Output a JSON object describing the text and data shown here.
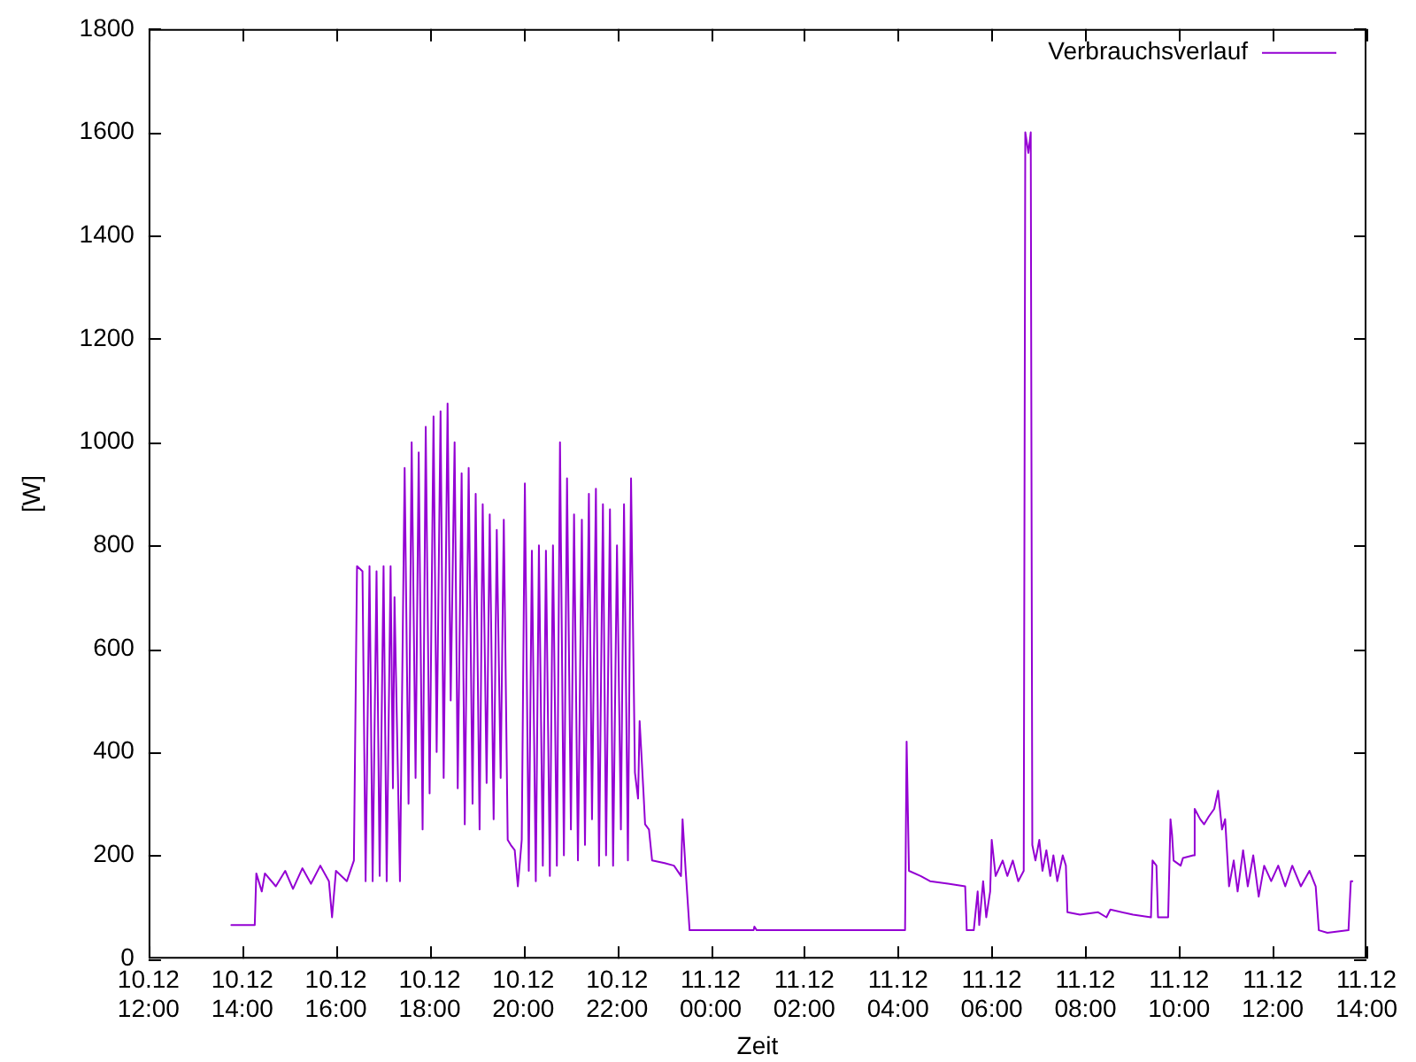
{
  "chart_data": {
    "type": "line",
    "xlabel": "Zeit",
    "ylabel": "[W]",
    "legend": "top right",
    "grid": false,
    "marker": "none",
    "line_style": "solid",
    "xlim": [
      "--12-10T12:00",
      "--12-11T14:00"
    ],
    "ylim": [
      0,
      1800
    ],
    "xticks": [
      {
        "value": "--12-10T12:00",
        "label": "10.12 12:00"
      },
      {
        "value": "--12-10T14:00",
        "label": "10.12 14:00"
      },
      {
        "value": "--12-10T16:00",
        "label": "10.12 16:00"
      },
      {
        "value": "--12-10T18:00",
        "label": "10.12 18:00"
      },
      {
        "value": "--12-10T20:00",
        "label": "10.12 20:00"
      },
      {
        "value": "--12-10T22:00",
        "label": "10.12 22:00"
      },
      {
        "value": "--12-11T00:00",
        "label": "11.12 00:00"
      },
      {
        "value": "--12-11T02:00",
        "label": "11.12 02:00"
      },
      {
        "value": "--12-11T04:00",
        "label": "11.12 04:00"
      },
      {
        "value": "--12-11T06:00",
        "label": "11.12 06:00"
      },
      {
        "value": "--12-11T08:00",
        "label": "11.12 08:00"
      },
      {
        "value": "--12-11T10:00",
        "label": "11.12 10:00"
      },
      {
        "value": "--12-11T12:00",
        "label": "11.12 12:00"
      },
      {
        "value": "--12-11T14:00",
        "label": "11.12 14:00"
      }
    ],
    "yticks": [
      0,
      200,
      400,
      600,
      800,
      1000,
      1200,
      1400,
      1600,
      1800
    ],
    "series": [
      {
        "name": "Verbrauchsverlauf",
        "color": "#9400d3",
        "x": [
          "--12-10T13:46",
          "--12-10T14:16",
          "--12-10T14:18",
          "--12-10T14:25",
          "--12-10T14:29",
          "--12-10T14:43",
          "--12-10T14:55",
          "--12-10T15:05",
          "--12-10T15:17",
          "--12-10T15:28",
          "--12-10T15:40",
          "--12-10T15:51",
          "--12-10T15:55",
          "--12-10T16:00",
          "--12-10T16:14",
          "--12-10T16:23",
          "--12-10T16:27",
          "--12-10T16:34",
          "--12-10T16:38",
          "--12-10T16:43",
          "--12-10T16:47",
          "--12-10T16:52",
          "--12-10T16:56",
          "--12-10T17:01",
          "--12-10T17:05",
          "--12-10T17:10",
          "--12-10T17:13",
          "--12-10T17:15",
          "--12-10T17:22",
          "--12-10T17:28",
          "--12-10T17:33",
          "--12-10T17:37",
          "--12-10T17:42",
          "--12-10T17:46",
          "--12-10T17:51",
          "--12-10T17:55",
          "--12-10T18:00",
          "--12-10T18:05",
          "--12-10T18:09",
          "--12-10T18:14",
          "--12-10T18:18",
          "--12-10T18:23",
          "--12-10T18:27",
          "--12-10T18:32",
          "--12-10T18:36",
          "--12-10T18:41",
          "--12-10T18:45",
          "--12-10T18:50",
          "--12-10T18:55",
          "--12-10T18:59",
          "--12-10T19:04",
          "--12-10T19:08",
          "--12-10T19:13",
          "--12-10T19:17",
          "--12-10T19:22",
          "--12-10T19:26",
          "--12-10T19:31",
          "--12-10T19:35",
          "--12-10T19:40",
          "--12-10T19:44",
          "--12-10T19:49",
          "--12-10T19:53",
          "--12-10T19:58",
          "--12-10T20:02",
          "--12-10T20:07",
          "--12-10T20:11",
          "--12-10T20:16",
          "--12-10T20:20",
          "--12-10T20:25",
          "--12-10T20:29",
          "--12-10T20:34",
          "--12-10T20:38",
          "--12-10T20:43",
          "--12-10T20:47",
          "--12-10T20:52",
          "--12-10T20:56",
          "--12-10T21:01",
          "--12-10T21:05",
          "--12-10T21:10",
          "--12-10T21:15",
          "--12-10T21:19",
          "--12-10T21:24",
          "--12-10T21:28",
          "--12-10T21:33",
          "--12-10T21:37",
          "--12-10T21:42",
          "--12-10T21:46",
          "--12-10T21:51",
          "--12-10T21:55",
          "--12-10T22:00",
          "--12-10T22:05",
          "--12-10T22:09",
          "--12-10T22:14",
          "--12-10T22:18",
          "--12-10T22:23",
          "--12-10T22:27",
          "--12-10T22:29",
          "--12-10T22:34",
          "--12-10T22:36",
          "--12-10T22:41",
          "--12-10T22:45",
          "--12-10T23:01",
          "--12-10T23:13",
          "--12-10T23:22",
          "--12-10T23:24",
          "--12-10T23:28",
          "--12-10T23:33",
          "--12-11T00:55",
          "--12-11T00:56",
          "--12-11T00:59",
          "--12-11T04:09",
          "--12-11T04:11",
          "--12-11T04:14",
          "--12-11T04:29",
          "--12-11T04:41",
          "--12-11T05:04",
          "--12-11T05:26",
          "--12-11T05:28",
          "--12-11T05:37",
          "--12-11T05:42",
          "--12-11T05:44",
          "--12-11T05:49",
          "--12-11T05:53",
          "--12-11T05:58",
          "--12-11T06:00",
          "--12-11T06:05",
          "--12-11T06:14",
          "--12-11T06:20",
          "--12-11T06:27",
          "--12-11T06:34",
          "--12-11T06:41",
          "--12-11T06:43",
          "--12-11T06:47",
          "--12-11T06:50",
          "--12-11T06:52",
          "--12-11T06:56",
          "--12-11T07:01",
          "--12-11T07:05",
          "--12-11T07:10",
          "--12-11T07:15",
          "--12-11T07:19",
          "--12-11T07:24",
          "--12-11T07:31",
          "--12-11T07:35",
          "--12-11T07:37",
          "--12-11T07:53",
          "--12-11T08:16",
          "--12-11T08:27",
          "--12-11T08:32",
          "--12-11T09:01",
          "--12-11T09:24",
          "--12-11T09:26",
          "--12-11T09:31",
          "--12-11T09:33",
          "--12-11T09:46",
          "--12-11T09:49",
          "--12-11T09:51",
          "--12-11T09:53",
          "--12-11T10:02",
          "--12-11T10:05",
          "--12-11T10:18",
          "--12-11T10:20",
          "--12-11T10:27",
          "--12-11T10:32",
          "--12-11T10:38",
          "--12-11T10:45",
          "--12-11T10:50",
          "--12-11T10:55",
          "--12-11T10:59",
          "--12-11T11:04",
          "--12-11T11:10",
          "--12-11T11:15",
          "--12-11T11:22",
          "--12-11T11:28",
          "--12-11T11:35",
          "--12-11T11:42",
          "--12-11T11:49",
          "--12-11T11:58",
          "--12-11T12:07",
          "--12-11T12:16",
          "--12-11T12:25",
          "--12-11T12:36",
          "--12-11T12:47",
          "--12-11T12:55",
          "--12-11T12:59",
          "--12-11T13:10",
          "--12-11T13:37",
          "--12-11T13:40",
          "--12-11T13:42"
        ],
        "values": [
          65,
          65,
          165,
          130,
          165,
          140,
          170,
          135,
          175,
          145,
          180,
          150,
          80,
          170,
          150,
          190,
          760,
          750,
          150,
          760,
          150,
          750,
          160,
          760,
          150,
          760,
          330,
          700,
          150,
          950,
          300,
          1000,
          350,
          980,
          250,
          1030,
          320,
          1050,
          400,
          1060,
          350,
          1075,
          500,
          1000,
          330,
          940,
          260,
          950,
          300,
          900,
          250,
          880,
          340,
          860,
          270,
          830,
          350,
          850,
          230,
          220,
          210,
          140,
          230,
          920,
          170,
          790,
          150,
          800,
          180,
          790,
          160,
          800,
          180,
          1000,
          200,
          930,
          250,
          860,
          190,
          850,
          220,
          900,
          270,
          910,
          180,
          880,
          200,
          870,
          180,
          800,
          250,
          880,
          190,
          930,
          360,
          310,
          460,
          320,
          260,
          250,
          190,
          185,
          180,
          160,
          270,
          170,
          55,
          55,
          62,
          55,
          55,
          420,
          170,
          160,
          150,
          145,
          140,
          55,
          55,
          130,
          65,
          150,
          80,
          130,
          230,
          160,
          190,
          160,
          190,
          150,
          170,
          1600,
          1560,
          1600,
          220,
          190,
          230,
          170,
          210,
          160,
          200,
          150,
          200,
          180,
          90,
          85,
          90,
          80,
          95,
          85,
          80,
          190,
          180,
          80,
          80,
          270,
          240,
          190,
          180,
          195,
          200,
          290,
          270,
          260,
          275,
          290,
          325,
          250,
          270,
          140,
          190,
          130,
          210,
          140,
          200,
          120,
          180,
          150,
          180,
          140,
          180,
          140,
          170,
          140,
          55,
          50,
          55,
          150,
          150
        ]
      }
    ]
  }
}
